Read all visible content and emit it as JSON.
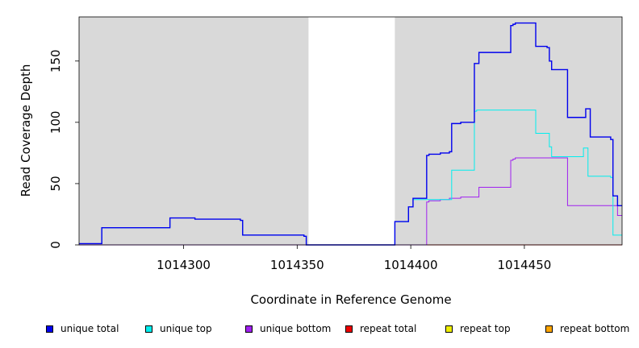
{
  "chart_data": {
    "type": "line",
    "title": "",
    "xlabel": "Coordinate in Reference Genome",
    "ylabel": "Read Coverage Depth",
    "xlim": [
      1014254,
      1014493
    ],
    "ylim": [
      0,
      186
    ],
    "xticks": [
      1014300,
      1014350,
      1014400,
      1014450
    ],
    "yticks": [
      0,
      50,
      100,
      150
    ],
    "background_color": "#d9d9d9",
    "unshaded_regions": [
      [
        1014355,
        1014393
      ]
    ],
    "legend_position": "bottom",
    "series": [
      {
        "name": "unique total",
        "color": "#0000ee",
        "points": [
          [
            1014254,
            1
          ],
          [
            1014264,
            1
          ],
          [
            1014264,
            14
          ],
          [
            1014294,
            14
          ],
          [
            1014294,
            22
          ],
          [
            1014305,
            22
          ],
          [
            1014305,
            21
          ],
          [
            1014325,
            21
          ],
          [
            1014325,
            20
          ],
          [
            1014326,
            20
          ],
          [
            1014326,
            8
          ],
          [
            1014353,
            8
          ],
          [
            1014353,
            7
          ],
          [
            1014354,
            7
          ],
          [
            1014354,
            0
          ],
          [
            1014393,
            0
          ],
          [
            1014393,
            19
          ],
          [
            1014399,
            19
          ],
          [
            1014399,
            31
          ],
          [
            1014401,
            31
          ],
          [
            1014401,
            38
          ],
          [
            1014407,
            38
          ],
          [
            1014407,
            73
          ],
          [
            1014408,
            73
          ],
          [
            1014408,
            74
          ],
          [
            1014413,
            74
          ],
          [
            1014413,
            75
          ],
          [
            1014417,
            75
          ],
          [
            1014417,
            76
          ],
          [
            1014418,
            76
          ],
          [
            1014418,
            99
          ],
          [
            1014422,
            99
          ],
          [
            1014422,
            100
          ],
          [
            1014428,
            100
          ],
          [
            1014428,
            148
          ],
          [
            1014430,
            148
          ],
          [
            1014430,
            157
          ],
          [
            1014444,
            157
          ],
          [
            1014444,
            179
          ],
          [
            1014445,
            179
          ],
          [
            1014445,
            180
          ],
          [
            1014446,
            180
          ],
          [
            1014446,
            181
          ],
          [
            1014455,
            181
          ],
          [
            1014455,
            162
          ],
          [
            1014460,
            162
          ],
          [
            1014460,
            161
          ],
          [
            1014461,
            161
          ],
          [
            1014461,
            150
          ],
          [
            1014462,
            150
          ],
          [
            1014462,
            143
          ],
          [
            1014469,
            143
          ],
          [
            1014469,
            104
          ],
          [
            1014477,
            104
          ],
          [
            1014477,
            111
          ],
          [
            1014479,
            111
          ],
          [
            1014479,
            88
          ],
          [
            1014488,
            88
          ],
          [
            1014488,
            86
          ],
          [
            1014489,
            86
          ],
          [
            1014489,
            40
          ],
          [
            1014491,
            40
          ],
          [
            1014491,
            32
          ],
          [
            1014493,
            32
          ]
        ]
      },
      {
        "name": "unique top",
        "color": "#00eeee",
        "points": [
          [
            1014254,
            1
          ],
          [
            1014264,
            1
          ],
          [
            1014264,
            14
          ],
          [
            1014294,
            14
          ],
          [
            1014294,
            22
          ],
          [
            1014305,
            22
          ],
          [
            1014305,
            21
          ],
          [
            1014325,
            21
          ],
          [
            1014325,
            20
          ],
          [
            1014326,
            20
          ],
          [
            1014326,
            8
          ],
          [
            1014353,
            8
          ],
          [
            1014353,
            7
          ],
          [
            1014354,
            7
          ],
          [
            1014354,
            0
          ],
          [
            1014393,
            0
          ],
          [
            1014393,
            19
          ],
          [
            1014399,
            19
          ],
          [
            1014399,
            31
          ],
          [
            1014401,
            31
          ],
          [
            1014401,
            37
          ],
          [
            1014418,
            37
          ],
          [
            1014418,
            61
          ],
          [
            1014428,
            61
          ],
          [
            1014428,
            109
          ],
          [
            1014429,
            109
          ],
          [
            1014429,
            110
          ],
          [
            1014455,
            110
          ],
          [
            1014455,
            91
          ],
          [
            1014461,
            91
          ],
          [
            1014461,
            80
          ],
          [
            1014462,
            80
          ],
          [
            1014462,
            72
          ],
          [
            1014476,
            72
          ],
          [
            1014476,
            79
          ],
          [
            1014478,
            79
          ],
          [
            1014478,
            56
          ],
          [
            1014488,
            56
          ],
          [
            1014488,
            55
          ],
          [
            1014489,
            55
          ],
          [
            1014489,
            8
          ],
          [
            1014493,
            8
          ]
        ]
      },
      {
        "name": "unique bottom",
        "color": "#a020f0",
        "points": [
          [
            1014254,
            0
          ],
          [
            1014407,
            0
          ],
          [
            1014407,
            35
          ],
          [
            1014408,
            35
          ],
          [
            1014408,
            36
          ],
          [
            1014413,
            36
          ],
          [
            1014413,
            37
          ],
          [
            1014417,
            37
          ],
          [
            1014417,
            38
          ],
          [
            1014422,
            38
          ],
          [
            1014422,
            39
          ],
          [
            1014430,
            39
          ],
          [
            1014430,
            47
          ],
          [
            1014444,
            47
          ],
          [
            1014444,
            69
          ],
          [
            1014445,
            69
          ],
          [
            1014445,
            70
          ],
          [
            1014446,
            70
          ],
          [
            1014446,
            71
          ],
          [
            1014469,
            71
          ],
          [
            1014469,
            32
          ],
          [
            1014491,
            32
          ],
          [
            1014491,
            24
          ],
          [
            1014493,
            24
          ]
        ]
      },
      {
        "name": "repeat total",
        "color": "#ee0000",
        "points": [
          [
            1014254,
            0
          ],
          [
            1014493,
            0
          ]
        ]
      },
      {
        "name": "repeat top",
        "color": "#eeee00",
        "points": [
          [
            1014254,
            0
          ],
          [
            1014493,
            0
          ]
        ]
      },
      {
        "name": "repeat bottom",
        "color": "#ffa500",
        "points": [
          [
            1014407,
            0
          ],
          [
            1014493,
            0
          ]
        ]
      }
    ]
  }
}
